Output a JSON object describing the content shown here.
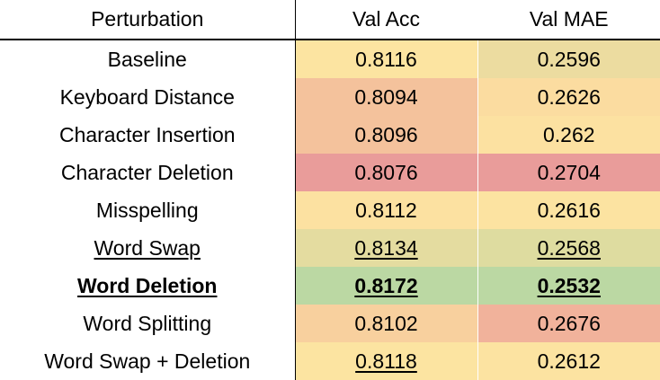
{
  "table": {
    "headers": [
      "Perturbation",
      "Val Acc",
      "Val MAE"
    ],
    "rows": [
      {
        "name": "Baseline",
        "acc": "0.8116",
        "mae": "0.2596",
        "acc_color": "#fce4a1",
        "mae_color": "#ecdca0",
        "bold": false,
        "name_underline": false,
        "acc_underline": false,
        "mae_underline": false
      },
      {
        "name": "Keyboard Distance",
        "acc": "0.8094",
        "mae": "0.2626",
        "acc_color": "#f4c29c",
        "mae_color": "#fbdca0",
        "bold": false,
        "name_underline": false,
        "acc_underline": false,
        "mae_underline": false
      },
      {
        "name": "Character Insertion",
        "acc": "0.8096",
        "mae": "0.262",
        "acc_color": "#f4c29c",
        "mae_color": "#fce1a1",
        "bold": false,
        "name_underline": false,
        "acc_underline": false,
        "mae_underline": false
      },
      {
        "name": "Character Deletion",
        "acc": "0.8076",
        "mae": "0.2704",
        "acc_color": "#e99c9a",
        "mae_color": "#e99c9a",
        "bold": false,
        "name_underline": false,
        "acc_underline": false,
        "mae_underline": false
      },
      {
        "name": "Misspelling",
        "acc": "0.8112",
        "mae": "0.2616",
        "acc_color": "#fce1a1",
        "mae_color": "#fce3a1",
        "bold": false,
        "name_underline": false,
        "acc_underline": false,
        "mae_underline": false
      },
      {
        "name": "Word Swap",
        "acc": "0.8134",
        "mae": "0.2568",
        "acc_color": "#e4dca0",
        "mae_color": "#dedca0",
        "bold": false,
        "name_underline": true,
        "acc_underline": true,
        "mae_underline": true
      },
      {
        "name": "Word Deletion",
        "acc": "0.8172",
        "mae": "0.2532",
        "acc_color": "#bbd8a3",
        "mae_color": "#bbd8a3",
        "bold": true,
        "name_underline": true,
        "acc_underline": true,
        "mae_underline": true
      },
      {
        "name": "Word Splitting",
        "acc": "0.8102",
        "mae": "0.2676",
        "acc_color": "#f8d09e",
        "mae_color": "#f1b29b",
        "bold": false,
        "name_underline": false,
        "acc_underline": false,
        "mae_underline": false
      },
      {
        "name": "Word Swap + Deletion",
        "acc": "0.8118",
        "mae": "0.2612",
        "acc_color": "#fce4a1",
        "mae_color": "#fce3a1",
        "bold": false,
        "name_underline": false,
        "acc_underline": true,
        "mae_underline": false
      }
    ]
  }
}
